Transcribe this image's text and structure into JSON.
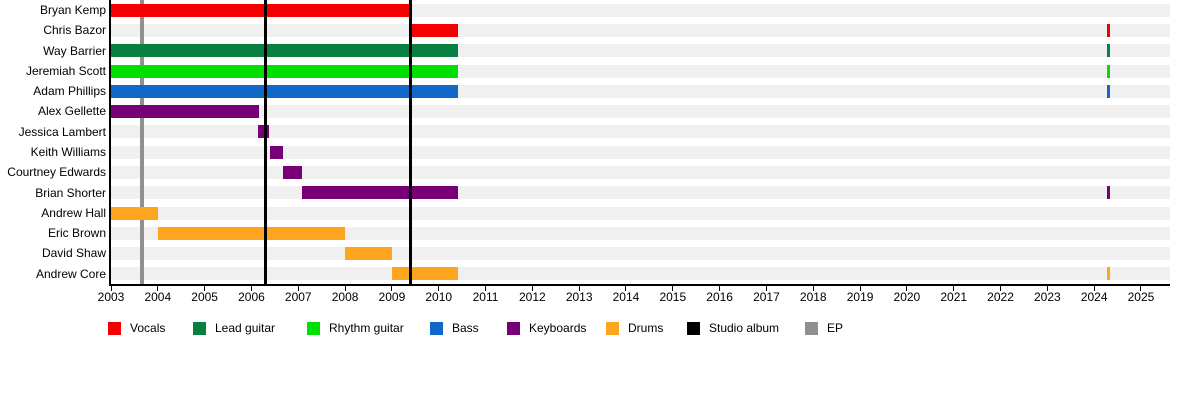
{
  "chart_data": {
    "type": "bar",
    "subtype": "member-timeline-gantt",
    "x_axis": {
      "start": 2003,
      "end": 2025.6,
      "tick_years": [
        2003,
        2004,
        2005,
        2006,
        2007,
        2008,
        2009,
        2010,
        2011,
        2012,
        2013,
        2014,
        2015,
        2016,
        2017,
        2018,
        2019,
        2020,
        2021,
        2022,
        2023,
        2024,
        2025
      ]
    },
    "members": [
      {
        "name": "Bryan Kemp",
        "role": "Vocals",
        "periods": [
          [
            2003.0,
            2009.39
          ]
        ]
      },
      {
        "name": "Chris Bazor",
        "role": "Vocals",
        "periods": [
          [
            2009.4,
            2010.42
          ],
          [
            2024.28,
            2024.34
          ]
        ]
      },
      {
        "name": "Way Barrier",
        "role": "Lead guitar",
        "periods": [
          [
            2003.0,
            2010.42
          ],
          [
            2024.28,
            2024.34
          ]
        ]
      },
      {
        "name": "Jeremiah Scott",
        "role": "Rhythm guitar",
        "periods": [
          [
            2003.0,
            2010.42
          ],
          [
            2024.28,
            2024.34
          ]
        ]
      },
      {
        "name": "Adam Phillips",
        "role": "Bass",
        "periods": [
          [
            2003.0,
            2010.42
          ],
          [
            2024.28,
            2024.34
          ]
        ]
      },
      {
        "name": "Alex Gellette",
        "role": "Keyboards",
        "periods": [
          [
            2003.0,
            2006.16
          ]
        ]
      },
      {
        "name": "Jessica Lambert",
        "role": "Keyboards",
        "periods": [
          [
            2006.15,
            2006.38
          ]
        ]
      },
      {
        "name": "Keith Williams",
        "role": "Keyboards",
        "periods": [
          [
            2006.4,
            2006.67
          ]
        ]
      },
      {
        "name": "Courtney Edwards",
        "role": "Keyboards",
        "periods": [
          [
            2006.67,
            2007.08
          ]
        ]
      },
      {
        "name": "Brian Shorter",
        "role": "Keyboards",
        "periods": [
          [
            2007.08,
            2010.42
          ],
          [
            2024.28,
            2024.34
          ]
        ]
      },
      {
        "name": "Andrew Hall",
        "role": "Drums",
        "periods": [
          [
            2003.0,
            2004.0
          ]
        ]
      },
      {
        "name": "Eric Brown",
        "role": "Drums",
        "periods": [
          [
            2004.0,
            2008.0
          ]
        ]
      },
      {
        "name": "David Shaw",
        "role": "Drums",
        "periods": [
          [
            2008.0,
            2009.0
          ]
        ]
      },
      {
        "name": "Andrew Core",
        "role": "Drums",
        "periods": [
          [
            2009.0,
            2010.42
          ],
          [
            2024.28,
            2024.34
          ]
        ]
      }
    ],
    "releases": [
      {
        "type": "EP",
        "year": 2003.66
      },
      {
        "type": "Studio album",
        "year": 2006.31
      },
      {
        "type": "Studio album",
        "year": 2009.39
      }
    ],
    "role_colors": {
      "Vocals": "#f40000",
      "Lead guitar": "#0a8040",
      "Rhythm guitar": "#00e000",
      "Bass": "#1168c9",
      "Keyboards": "#770077",
      "Drums": "#ffa41f"
    },
    "release_colors": {
      "Studio album": "#000000",
      "EP": "#909090"
    },
    "track_color": "#f0f0f0",
    "legend": [
      {
        "label": "Vocals",
        "color": "#f40000"
      },
      {
        "label": "Lead guitar",
        "color": "#0a8040"
      },
      {
        "label": "Rhythm guitar",
        "color": "#00e000"
      },
      {
        "label": "Bass",
        "color": "#1168c9"
      },
      {
        "label": "Keyboards",
        "color": "#770077"
      },
      {
        "label": "Drums",
        "color": "#ffa41f"
      },
      {
        "label": "Studio album",
        "color": "#000000"
      },
      {
        "label": "EP",
        "color": "#909090"
      }
    ]
  }
}
